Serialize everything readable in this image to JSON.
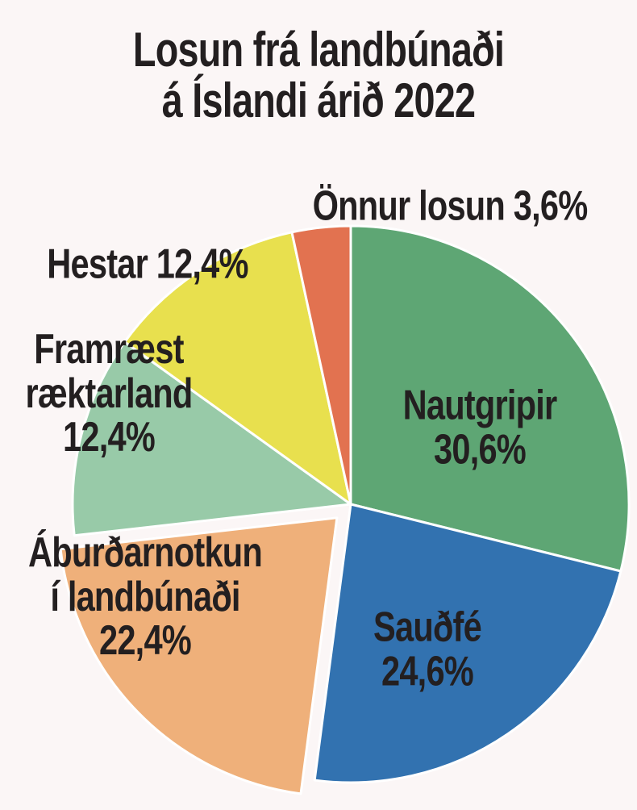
{
  "chart_data": {
    "type": "pie",
    "title": "Losun frá landbúnaði\ná Íslandi árið 2022",
    "categories": [
      "Nautgripir",
      "Sauðfé",
      "Áburðarnotkun\ní landbúnaði",
      "Framræst\nræktarland",
      "Hestar",
      "Önnur losun"
    ],
    "values": [
      30.6,
      24.6,
      22.4,
      12.4,
      12.4,
      3.6
    ],
    "value_labels": [
      "30,6%",
      "24,6%",
      "22,4%",
      "12,4%",
      "12,4%",
      "3,6%"
    ],
    "colors": [
      "#5ea674",
      "#3272b0",
      "#efb07a",
      "#98caa8",
      "#e8e04e",
      "#e27250"
    ]
  }
}
